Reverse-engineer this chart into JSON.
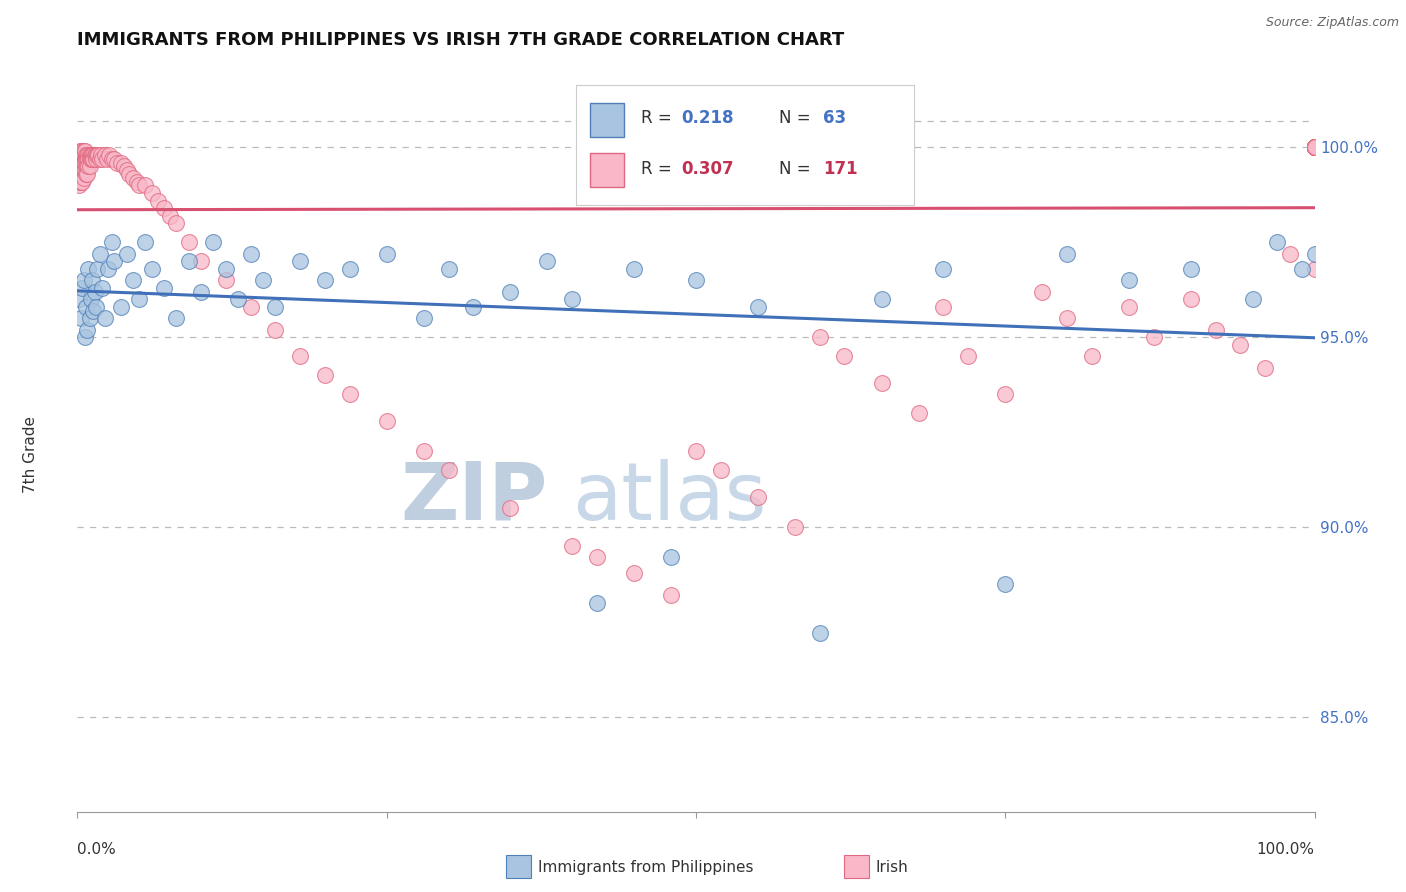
{
  "title": "IMMIGRANTS FROM PHILIPPINES VS IRISH 7TH GRADE CORRELATION CHART",
  "source": "Source: ZipAtlas.com",
  "ylabel": "7th Grade",
  "legend_blue_R": "0.218",
  "legend_blue_N": "63",
  "legend_pink_R": "0.307",
  "legend_pink_N": "171",
  "blue_fill_color": "#a8c4e0",
  "blue_edge_color": "#5080b8",
  "pink_fill_color": "#f8b8c8",
  "pink_edge_color": "#e06880",
  "blue_line_color": "#4070b8",
  "pink_line_color": "#d85070",
  "watermark_zip_color": "#c0cfe0",
  "watermark_atlas_color": "#c8d8e8",
  "right_tick_color": "#4472c4",
  "xlim": [
    0,
    1
  ],
  "ylim": [
    0.825,
    1.013
  ],
  "yticks": [
    0.85,
    0.9,
    0.95,
    1.0
  ],
  "ytick_labels": [
    "85.0%",
    "90.0%",
    "95.0%",
    "100.0%"
  ],
  "blue_x": [
    0.001,
    0.003,
    0.004,
    0.005,
    0.006,
    0.007,
    0.008,
    0.009,
    0.01,
    0.011,
    0.012,
    0.013,
    0.014,
    0.015,
    0.016,
    0.018,
    0.02,
    0.022,
    0.025,
    0.028,
    0.03,
    0.035,
    0.04,
    0.045,
    0.05,
    0.055,
    0.06,
    0.07,
    0.08,
    0.09,
    0.1,
    0.11,
    0.12,
    0.13,
    0.14,
    0.15,
    0.16,
    0.18,
    0.2,
    0.22,
    0.25,
    0.28,
    0.3,
    0.32,
    0.35,
    0.38,
    0.4,
    0.42,
    0.45,
    0.48,
    0.5,
    0.55,
    0.6,
    0.65,
    0.7,
    0.75,
    0.8,
    0.85,
    0.9,
    0.95,
    0.97,
    0.99,
    1.0
  ],
  "blue_y": [
    0.96,
    0.955,
    0.963,
    0.965,
    0.95,
    0.958,
    0.952,
    0.968,
    0.955,
    0.96,
    0.965,
    0.957,
    0.962,
    0.958,
    0.968,
    0.972,
    0.963,
    0.955,
    0.968,
    0.975,
    0.97,
    0.958,
    0.972,
    0.965,
    0.96,
    0.975,
    0.968,
    0.963,
    0.955,
    0.97,
    0.962,
    0.975,
    0.968,
    0.96,
    0.972,
    0.965,
    0.958,
    0.97,
    0.965,
    0.968,
    0.972,
    0.955,
    0.968,
    0.958,
    0.962,
    0.97,
    0.96,
    0.88,
    0.968,
    0.892,
    0.965,
    0.958,
    0.872,
    0.96,
    0.968,
    0.885,
    0.972,
    0.965,
    0.968,
    0.96,
    0.975,
    0.968,
    0.972
  ],
  "pink_x": [
    0.001,
    0.001,
    0.001,
    0.001,
    0.001,
    0.002,
    0.002,
    0.002,
    0.002,
    0.002,
    0.003,
    0.003,
    0.003,
    0.003,
    0.003,
    0.004,
    0.004,
    0.004,
    0.004,
    0.004,
    0.005,
    0.005,
    0.005,
    0.005,
    0.005,
    0.006,
    0.006,
    0.006,
    0.006,
    0.007,
    0.007,
    0.007,
    0.007,
    0.008,
    0.008,
    0.008,
    0.008,
    0.009,
    0.009,
    0.009,
    0.01,
    0.01,
    0.01,
    0.011,
    0.011,
    0.012,
    0.012,
    0.013,
    0.013,
    0.014,
    0.015,
    0.015,
    0.016,
    0.017,
    0.018,
    0.019,
    0.02,
    0.022,
    0.024,
    0.026,
    0.028,
    0.03,
    0.032,
    0.035,
    0.038,
    0.04,
    0.042,
    0.045,
    0.048,
    0.05,
    0.055,
    0.06,
    0.065,
    0.07,
    0.075,
    0.08,
    0.09,
    0.1,
    0.12,
    0.14,
    0.16,
    0.18,
    0.2,
    0.22,
    0.25,
    0.28,
    0.3,
    0.35,
    0.4,
    0.42,
    0.45,
    0.48,
    0.5,
    0.52,
    0.55,
    0.58,
    0.6,
    0.62,
    0.65,
    0.68,
    0.7,
    0.72,
    0.75,
    0.78,
    0.8,
    0.82,
    0.85,
    0.87,
    0.9,
    0.92,
    0.94,
    0.96,
    0.98,
    1.0,
    1.0,
    1.0,
    1.0,
    1.0,
    1.0,
    1.0,
    1.0,
    1.0,
    1.0,
    1.0,
    1.0,
    1.0,
    1.0,
    1.0,
    1.0,
    1.0,
    1.0,
    1.0,
    1.0,
    1.0,
    1.0,
    1.0,
    1.0,
    1.0,
    1.0,
    1.0,
    1.0,
    1.0,
    1.0,
    1.0,
    1.0,
    1.0,
    1.0,
    1.0,
    1.0,
    1.0,
    1.0,
    1.0,
    1.0,
    1.0,
    1.0,
    1.0,
    1.0,
    1.0,
    1.0,
    1.0,
    1.0,
    1.0,
    1.0,
    1.0,
    1.0,
    1.0,
    1.0,
    1.0,
    1.0,
    1.0,
    1.0
  ],
  "pink_y": [
    0.998,
    0.996,
    0.994,
    0.992,
    0.99,
    0.999,
    0.997,
    0.995,
    0.993,
    0.991,
    0.999,
    0.997,
    0.995,
    0.993,
    0.991,
    0.999,
    0.997,
    0.995,
    0.993,
    0.991,
    0.999,
    0.998,
    0.996,
    0.994,
    0.992,
    0.999,
    0.997,
    0.996,
    0.994,
    0.998,
    0.997,
    0.995,
    0.993,
    0.998,
    0.997,
    0.995,
    0.993,
    0.998,
    0.997,
    0.995,
    0.998,
    0.997,
    0.995,
    0.998,
    0.997,
    0.998,
    0.997,
    0.998,
    0.997,
    0.998,
    0.998,
    0.997,
    0.998,
    0.998,
    0.997,
    0.998,
    0.997,
    0.998,
    0.997,
    0.998,
    0.997,
    0.997,
    0.996,
    0.996,
    0.995,
    0.994,
    0.993,
    0.992,
    0.991,
    0.99,
    0.99,
    0.988,
    0.986,
    0.984,
    0.982,
    0.98,
    0.975,
    0.97,
    0.965,
    0.958,
    0.952,
    0.945,
    0.94,
    0.935,
    0.928,
    0.92,
    0.915,
    0.905,
    0.895,
    0.892,
    0.888,
    0.882,
    0.92,
    0.915,
    0.908,
    0.9,
    0.95,
    0.945,
    0.938,
    0.93,
    0.958,
    0.945,
    0.935,
    0.962,
    0.955,
    0.945,
    0.958,
    0.95,
    0.96,
    0.952,
    0.948,
    0.942,
    0.972,
    0.968,
    1.0,
    1.0,
    1.0,
    1.0,
    1.0,
    1.0,
    1.0,
    1.0,
    1.0,
    1.0,
    1.0,
    1.0,
    1.0,
    1.0,
    1.0,
    1.0,
    1.0,
    1.0,
    1.0,
    1.0,
    1.0,
    1.0,
    1.0,
    1.0,
    1.0,
    1.0,
    1.0,
    1.0,
    1.0,
    1.0,
    1.0,
    1.0,
    1.0,
    1.0,
    1.0,
    1.0,
    1.0,
    1.0,
    1.0,
    1.0,
    1.0,
    1.0,
    1.0,
    1.0,
    1.0,
    1.0,
    1.0,
    1.0,
    1.0,
    1.0,
    1.0,
    1.0,
    1.0,
    1.0,
    1.0,
    1.0,
    1.0
  ]
}
